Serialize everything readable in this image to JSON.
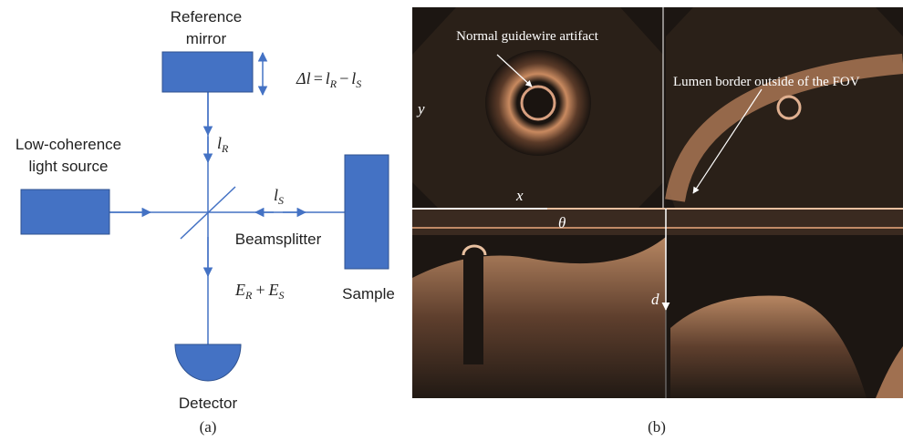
{
  "panel_a": {
    "reference_mirror": [
      "Reference",
      "mirror"
    ],
    "formula": {
      "lhs": "Δl",
      "eq": "=",
      "l1": "l",
      "sub1": "R",
      "minus": "−",
      "l2": "l",
      "sub2": "S"
    },
    "l_r": {
      "l": "l",
      "sub": "R"
    },
    "l_s": {
      "l": "l",
      "sub": "S"
    },
    "light_source": [
      "Low-coherence",
      "light source"
    ],
    "beamsplitter": "Beamsplitter",
    "field_sum": {
      "e1": "E",
      "sub1": "R",
      "plus": "+",
      "e2": "E",
      "sub2": "S"
    },
    "sample": "Sample",
    "detector": "Detector",
    "caption": "(a)"
  },
  "panel_b": {
    "guidewire_label": "Normal guidewire artifact",
    "lumen_label": "Lumen border outside of the FOV",
    "y_label": "y",
    "x_label": "x",
    "theta_label": "θ",
    "d_label": "d",
    "caption": "(b)"
  }
}
